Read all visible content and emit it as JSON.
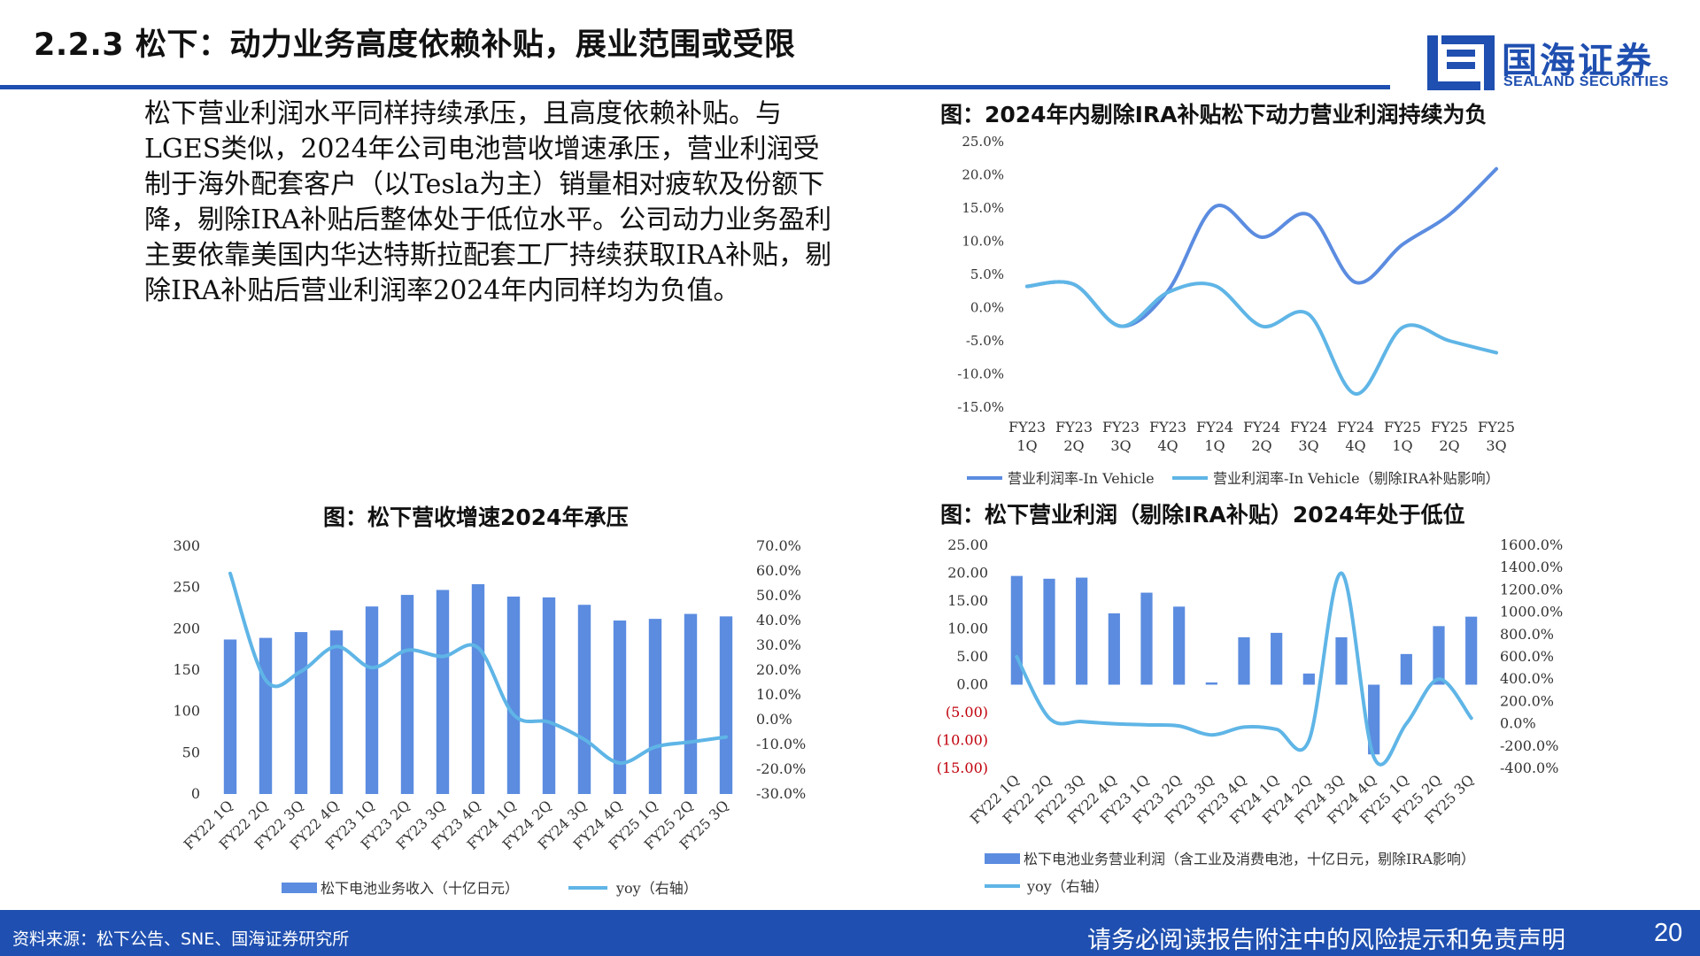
{
  "header": {
    "title": "2.2.3 松下：动力业务高度依赖补贴，展业范围或受限",
    "logo_cn": "国海证券",
    "logo_en": "SEALAND SECURITIES"
  },
  "body_text": "松下营业利润水平同样持续承压，且高度依赖补贴。与LGES类似，2024年公司电池营收增速承压，营业利润受制于海外配套客户（以Tesla为主）销量相对疲软及份额下降，剔除IRA补贴后整体处于低位水平。公司动力业务盈利主要依靠美国内华达特斯拉配套工厂持续获取IRA补贴，剔除IRA补贴后营业利润率2024年内同样均为负值。",
  "footer": {
    "source": "资料来源：松下公告、SNE、国海证券研究所",
    "disclaimer": "请务必阅读报告附注中的风险提示和免责声明",
    "page": "20"
  },
  "colors": {
    "brand_blue": "#1f4fb0",
    "bar_blue": "#5b8ce0",
    "line_dark": "#5b8ce0",
    "line_light": "#5fb5e6",
    "negative_red": "#c0000b"
  },
  "chart_data": [
    {
      "id": "margin",
      "type": "line",
      "title": "图：2024年内剔除IRA补贴松下动力营业利润持续为负",
      "categories": [
        "FY23 1Q",
        "FY23 2Q",
        "FY23 3Q",
        "FY23 4Q",
        "FY24 1Q",
        "FY24 2Q",
        "FY24 3Q",
        "FY24 4Q",
        "FY25 1Q",
        "FY25 2Q",
        "FY25 3Q"
      ],
      "category_lines": [
        [
          "FY23",
          "1Q"
        ],
        [
          "FY23",
          "2Q"
        ],
        [
          "FY23",
          "3Q"
        ],
        [
          "FY23",
          "4Q"
        ],
        [
          "FY24",
          "1Q"
        ],
        [
          "FY24",
          "2Q"
        ],
        [
          "FY24",
          "3Q"
        ],
        [
          "FY24",
          "4Q"
        ],
        [
          "FY25",
          "1Q"
        ],
        [
          "FY25",
          "2Q"
        ],
        [
          "FY25",
          "3Q"
        ]
      ],
      "series": [
        {
          "name": "营业利润率-In Vehicle",
          "values": [
            3.2,
            3.5,
            -2.8,
            2.5,
            15.2,
            10.6,
            14.0,
            3.8,
            9.5,
            14.0,
            20.9
          ]
        },
        {
          "name": "营业利润率-In Vehicle（剔除IRA补贴影响）",
          "values": [
            3.2,
            3.5,
            -2.8,
            2.3,
            3.3,
            -2.8,
            -1.0,
            -13.0,
            -3.0,
            -5.0,
            -6.8
          ]
        }
      ],
      "ylim": [
        -15,
        25
      ],
      "yticks": [
        "25.0%",
        "20.0%",
        "15.0%",
        "10.0%",
        "5.0%",
        "0.0%",
        "-5.0%",
        "-10.0%",
        "-15.0%"
      ]
    },
    {
      "id": "revenue",
      "type": "bar",
      "title": "图：松下营收增速2024年承压",
      "categories": [
        "FY22 1Q",
        "FY22 2Q",
        "FY22 3Q",
        "FY22 4Q",
        "FY23 1Q",
        "FY23 2Q",
        "FY23 3Q",
        "FY23 4Q",
        "FY24 1Q",
        "FY24 2Q",
        "FY24 3Q",
        "FY24 4Q",
        "FY25 1Q",
        "FY25 2Q",
        "FY25 3Q"
      ],
      "series": [
        {
          "name": "松下电池业务收入（十亿日元）",
          "axis": "left",
          "values": [
            187,
            189,
            196,
            198,
            227,
            241,
            247,
            254,
            239,
            238,
            229,
            210,
            212,
            218,
            215
          ]
        },
        {
          "name": "yoy（右轴）",
          "axis": "right",
          "values": [
            59.0,
            16.0,
            19.5,
            29.5,
            21.0,
            28.0,
            25.5,
            29.0,
            2.0,
            -1.0,
            -8.0,
            -17.5,
            -11.0,
            -9.0,
            -7.0
          ]
        }
      ],
      "ylim_left": [
        0,
        300
      ],
      "yticks_left": [
        "300",
        "250",
        "200",
        "150",
        "100",
        "50",
        "0"
      ],
      "ylim_right": [
        -30,
        70
      ],
      "yticks_right": [
        "70.0%",
        "60.0%",
        "50.0%",
        "40.0%",
        "30.0%",
        "20.0%",
        "10.0%",
        "0.0%",
        "-10.0%",
        "-20.0%",
        "-30.0%"
      ]
    },
    {
      "id": "profit",
      "type": "bar",
      "title": "图：松下营业利润（剔除IRA补贴）2024年处于低位",
      "categories": [
        "FY22 1Q",
        "FY22 2Q",
        "FY22 3Q",
        "FY22 4Q",
        "FY23 1Q",
        "FY23 2Q",
        "FY23 3Q",
        "FY23 4Q",
        "FY24 1Q",
        "FY24 2Q",
        "FY24 3Q",
        "FY24 4Q",
        "FY25 1Q",
        "FY25 2Q",
        "FY25 3Q"
      ],
      "series": [
        {
          "name": "松下电池业务营业利润（含工业及消费电池，十亿日元，剔除IRA影响）",
          "axis": "left",
          "values": [
            19.5,
            19.0,
            19.2,
            12.8,
            16.5,
            14.0,
            0.4,
            8.5,
            9.3,
            2.0,
            8.5,
            -12.5,
            5.5,
            10.5,
            12.2
          ]
        },
        {
          "name": "yoy（右轴）",
          "axis": "right",
          "values": [
            600,
            50,
            20,
            0,
            -10,
            -20,
            -100,
            -30,
            -50,
            -150,
            1350,
            -300,
            0,
            400,
            50
          ]
        }
      ],
      "ylim_left": [
        -15,
        25
      ],
      "yticks_left": [
        "25.00",
        "20.00",
        "15.00",
        "10.00",
        "5.00",
        "0.00",
        "(5.00)",
        "(10.00)",
        "(15.00)"
      ],
      "ylim_right": [
        -400,
        1600
      ],
      "yticks_right": [
        "1600.0%",
        "1400.0%",
        "1200.0%",
        "1000.0%",
        "800.0%",
        "600.0%",
        "400.0%",
        "200.0%",
        "0.0%",
        "-200.0%",
        "-400.0%"
      ]
    }
  ]
}
